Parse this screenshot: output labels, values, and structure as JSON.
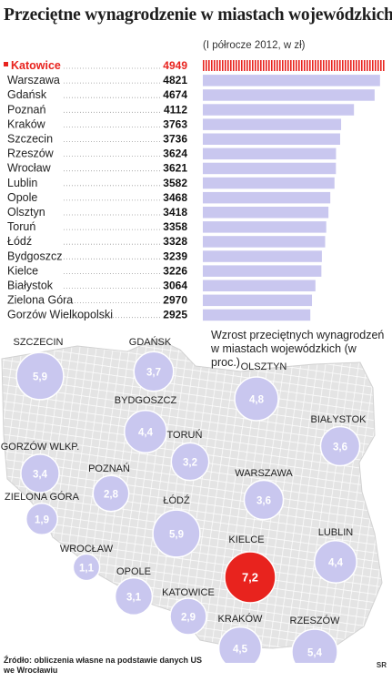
{
  "title": "Przeciętne wynagrodzenie w miastach wojewódzkich",
  "colors": {
    "bar": "#c9c7ef",
    "highlight": "#e8231e",
    "bubble": "#c9c7ef",
    "bubble_highlight": "#e8231e",
    "map_fill": "#e6e6e6",
    "street": "#ffffff"
  },
  "chart_data": [
    {
      "type": "bar",
      "orientation": "horizontal",
      "subtitle": "(I półrocze 2012, w zł)",
      "unit": "zł",
      "categories": [
        "Katowice",
        "Warszawa",
        "Gdańsk",
        "Poznań",
        "Kraków",
        "Szczecin",
        "Rzeszów",
        "Wrocław",
        "Lublin",
        "Opole",
        "Olsztyn",
        "Toruń",
        "Łódź",
        "Bydgoszcz",
        "Kielce",
        "Białystok",
        "Zielona Góra",
        "Gorzów Wielkopolski"
      ],
      "values": [
        4949,
        4821,
        4674,
        4112,
        3763,
        3736,
        3624,
        3621,
        3582,
        3468,
        3418,
        3358,
        3328,
        3239,
        3226,
        3064,
        2970,
        2925
      ],
      "value_labels": [
        "4949",
        "4821",
        "4674",
        "4112",
        "3763",
        "3736",
        "3624",
        "3621",
        "3582",
        "3468",
        "3418",
        "3358",
        "3328",
        "3239",
        "3226",
        "3064",
        "2970",
        "2925"
      ],
      "highlighted": "Katowice",
      "xlim": [
        0,
        4949
      ]
    },
    {
      "type": "bubble-map",
      "title": "Wzrost przeciętnych wynagrodzeń w miastach wojewódzkich (w proc.)",
      "cities": [
        "GDAŃSK",
        "SZCZECIN",
        "OLSZTYN",
        "BYDGOSZCZ",
        "TORUŃ",
        "BIAŁYSTOK",
        "GORZÓW WLKP.",
        "POZNAŃ",
        "WARSZAWA",
        "ZIELONA GÓRA",
        "ŁÓDŹ",
        "WROCŁAW",
        "KIELCE",
        "LUBLIN",
        "OPOLE",
        "KATOWICE",
        "KRAKÓW",
        "RZESZÓW"
      ],
      "values": [
        3.7,
        5.9,
        4.8,
        4.4,
        3.2,
        3.6,
        3.4,
        2.8,
        3.6,
        1.9,
        5.9,
        1.1,
        7.2,
        4.4,
        3.1,
        2.9,
        4.5,
        5.4
      ],
      "value_labels": [
        "3,7",
        "5,9",
        "4,8",
        "4,4",
        "3,2",
        "3,6",
        "3,4",
        "2,8",
        "3,6",
        "1,9",
        "5,9",
        "1,1",
        "7,2",
        "4,4",
        "3,1",
        "2,9",
        "4,5",
        "5,4"
      ],
      "highlighted": "KIELCE"
    }
  ],
  "source": "Źródło: obliczenia własne na podstawie danych US we Wrocławiu",
  "credit": "SR"
}
